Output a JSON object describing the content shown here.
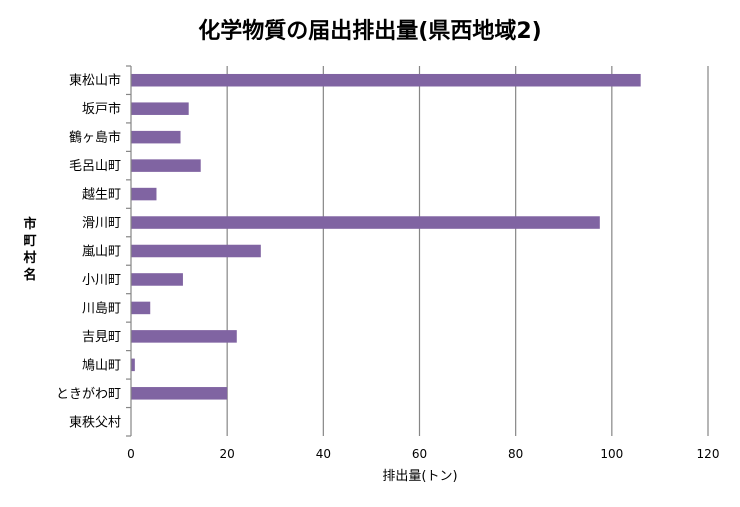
{
  "chart_data": {
    "type": "bar",
    "orientation": "horizontal",
    "title": "化学物質の届出排出量(県西地域2)",
    "xlabel": "排出量(トン)",
    "ylabel": "市町村名",
    "xlim": [
      0,
      120
    ],
    "xticks": [
      0,
      20,
      40,
      60,
      80,
      100,
      120
    ],
    "grid": "vertical",
    "bar_color": "#8064A2",
    "categories": [
      "東松山市",
      "坂戸市",
      "鶴ヶ島市",
      "毛呂山町",
      "越生町",
      "滑川町",
      "嵐山町",
      "小川町",
      "川島町",
      "吉見町",
      "鳩山町",
      "ときがわ町",
      "東秩父村"
    ],
    "values": [
      106,
      12,
      10.3,
      14.5,
      5.3,
      97.5,
      27,
      10.8,
      4,
      22,
      0.8,
      20,
      0
    ]
  }
}
